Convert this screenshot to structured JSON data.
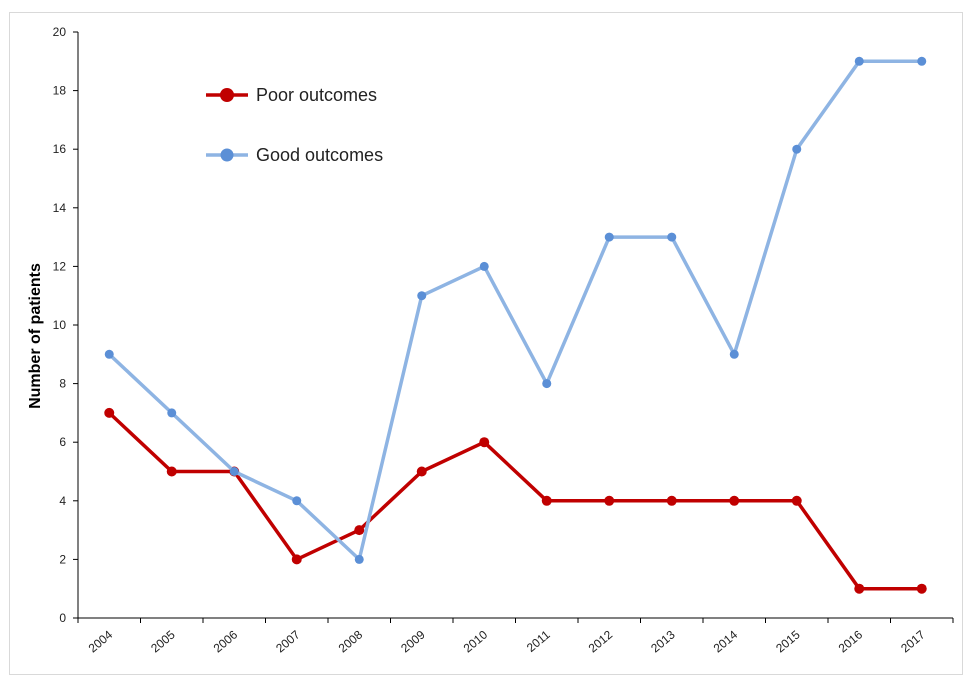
{
  "chart_data": {
    "type": "line",
    "title": "",
    "xlabel": "",
    "ylabel": "Number of patients",
    "categories": [
      "2004",
      "2005",
      "2006",
      "2007",
      "2008",
      "2009",
      "2010",
      "2011",
      "2012",
      "2013",
      "2014",
      "2015",
      "2016",
      "2017"
    ],
    "ylim": [
      0,
      20
    ],
    "yticks": [
      "0",
      "2",
      "4",
      "6",
      "8",
      "10",
      "12",
      "14",
      "16",
      "18",
      "20"
    ],
    "grid": false,
    "legend_position": "top-left",
    "series": [
      {
        "name": "Poor outcomes",
        "color": "#C00000",
        "values": [
          7,
          5,
          5,
          2,
          3,
          5,
          6,
          4,
          4,
          4,
          4,
          4,
          1,
          1
        ]
      },
      {
        "name": "Good outcomes",
        "color": "#8EB4E3",
        "marker_color": "#5B8FD6",
        "values": [
          9,
          7,
          5,
          4,
          2,
          11,
          12,
          8,
          13,
          13,
          9,
          16,
          19,
          19
        ]
      }
    ]
  }
}
